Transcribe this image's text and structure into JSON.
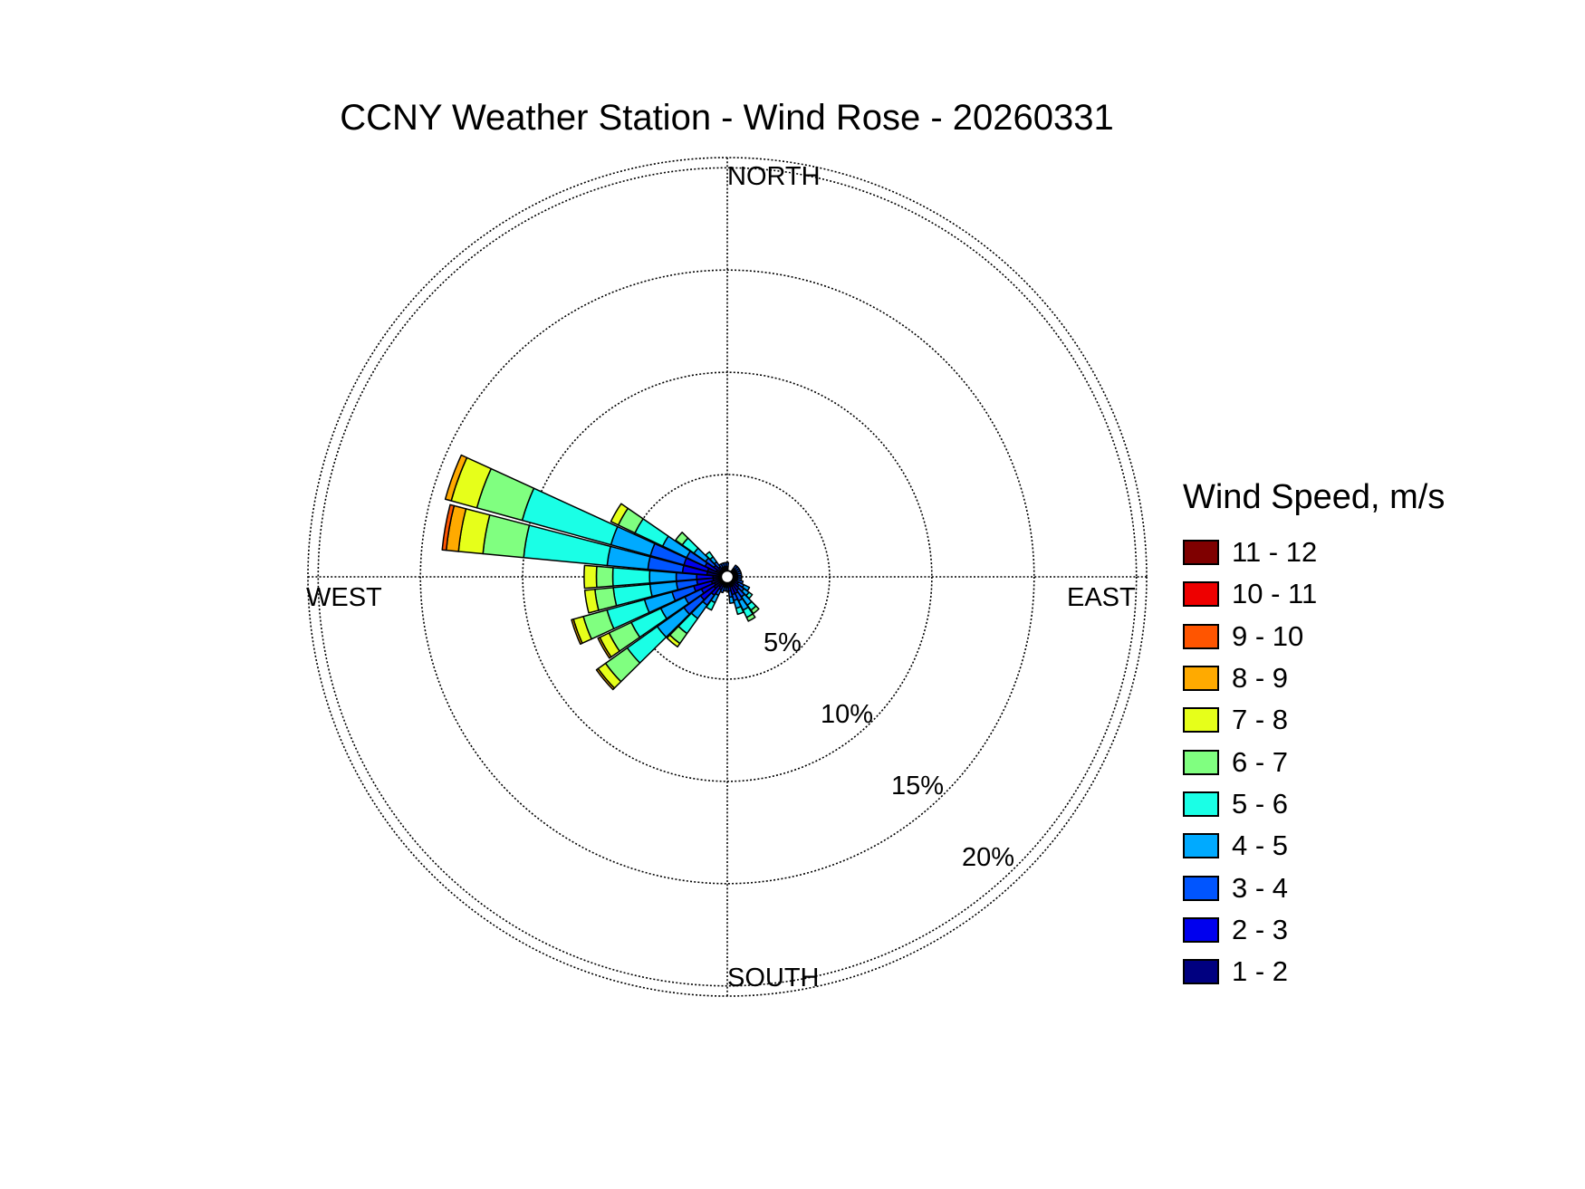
{
  "chart_data": {
    "type": "windrose",
    "title": "CCNY Weather Station - Wind Rose - 20260331",
    "directions": {
      "north": "NORTH",
      "east": "EAST",
      "south": "SOUTH",
      "west": "WEST"
    },
    "ring_labels": [
      "5%",
      "10%",
      "15%",
      "20%"
    ],
    "rings": [
      5,
      10,
      15,
      20
    ],
    "rmax": 20.5,
    "legend": {
      "title": "Wind Speed, m/s",
      "bins": [
        {
          "label": "11 - 12",
          "color": "#7f0000"
        },
        {
          "label": "10 - 11",
          "color": "#ee0000"
        },
        {
          "label": "9 - 10",
          "color": "#ff5500"
        },
        {
          "label": "8 - 9",
          "color": "#ffaa00"
        },
        {
          "label": "7 - 8",
          "color": "#e6ff1a"
        },
        {
          "label": "6 - 7",
          "color": "#80ff80"
        },
        {
          "label": "5 - 6",
          "color": "#1affe6"
        },
        {
          "label": "4 - 5",
          "color": "#00aaff"
        },
        {
          "label": "3 - 4",
          "color": "#0055ff"
        },
        {
          "label": "2 - 3",
          "color": "#0000ee"
        },
        {
          "label": "1 - 2",
          "color": "#000080"
        }
      ]
    },
    "stack_colors": [
      "#000080",
      "#0000ee",
      "#0055ff",
      "#00aaff",
      "#1affe6",
      "#80ff80",
      "#e6ff1a",
      "#ffaa00",
      "#ff5500",
      "#ee0000",
      "#7f0000"
    ],
    "series": [
      {
        "direction": 40,
        "cumulative": [
          0.3,
          0.5,
          0.7
        ]
      },
      {
        "direction": 50,
        "cumulative": [
          0.3,
          0.5,
          0.7
        ]
      },
      {
        "direction": 60,
        "cumulative": [
          0.3,
          0.5,
          0.7
        ]
      },
      {
        "direction": 70,
        "cumulative": [
          0.3,
          0.5,
          0.7
        ]
      },
      {
        "direction": 80,
        "cumulative": [
          0.3,
          0.5,
          0.7
        ]
      },
      {
        "direction": 90,
        "cumulative": [
          0.3,
          0.5,
          0.7
        ]
      },
      {
        "direction": 100,
        "cumulative": [
          0.3,
          0.5,
          0.7
        ]
      },
      {
        "direction": 110,
        "cumulative": [
          0.3,
          0.5,
          0.8
        ]
      },
      {
        "direction": 120,
        "cumulative": [
          0.3,
          0.6,
          0.9,
          1.2
        ]
      },
      {
        "direction": 130,
        "cumulative": [
          0.4,
          0.7,
          1.0,
          1.3,
          1.5
        ]
      },
      {
        "direction": 140,
        "cumulative": [
          0.4,
          0.8,
          1.2,
          1.7,
          2.0,
          2.2
        ]
      },
      {
        "direction": 150,
        "cumulative": [
          0.5,
          0.9,
          1.3,
          1.8,
          2.2,
          2.4
        ]
      },
      {
        "direction": 160,
        "cumulative": [
          0.5,
          0.9,
          1.2,
          1.6,
          1.9
        ]
      },
      {
        "direction": 170,
        "cumulative": [
          0.4,
          0.7,
          1.0,
          1.3
        ]
      },
      {
        "direction": 180,
        "cumulative": [
          0.3,
          0.5,
          0.7
        ]
      },
      {
        "direction": 190,
        "cumulative": [
          0.3,
          0.5,
          0.7
        ]
      },
      {
        "direction": 200,
        "cumulative": [
          0.3,
          0.5,
          0.8
        ]
      },
      {
        "direction": 210,
        "cumulative": [
          0.4,
          0.7,
          1.0,
          1.4,
          1.8
        ]
      },
      {
        "direction": 220,
        "cumulative": [
          0.6,
          1.1,
          1.7,
          2.5,
          3.4,
          4.0,
          4.2
        ]
      },
      {
        "direction": 230,
        "cumulative": [
          0.8,
          1.6,
          2.6,
          4.2,
          6.0,
          7.3,
          7.75,
          7.85
        ]
      },
      {
        "direction": 240,
        "cumulative": [
          0.7,
          1.4,
          2.3,
          3.6,
          5.2,
          6.4,
          6.9,
          7.0
        ]
      },
      {
        "direction": 250,
        "cumulative": [
          0.8,
          1.7,
          2.8,
          4.2,
          6.1,
          7.3,
          7.8,
          7.9
        ]
      },
      {
        "direction": 260,
        "cumulative": [
          0.7,
          1.5,
          2.5,
          3.8,
          5.6,
          6.5,
          7.0
        ]
      },
      {
        "direction": 270,
        "cumulative": [
          0.7,
          1.5,
          2.5,
          3.8,
          5.6,
          6.4,
          7.0
        ]
      },
      {
        "direction": 280,
        "cumulative": [
          1.0,
          2.2,
          3.9,
          5.9,
          10.0,
          12.0,
          13.2,
          13.8,
          14.0
        ]
      },
      {
        "direction": 290,
        "cumulative": [
          1.0,
          2.2,
          3.9,
          5.9,
          10.4,
          12.7,
          14.0,
          14.3
        ]
      },
      {
        "direction": 300,
        "cumulative": [
          0.6,
          1.2,
          2.2,
          3.5,
          5.0,
          5.9,
          6.3
        ]
      },
      {
        "direction": 310,
        "cumulative": [
          0.4,
          0.8,
          1.3,
          2.0,
          2.7,
          3.1
        ]
      },
      {
        "direction": 320,
        "cumulative": [
          0.3,
          0.6,
          0.9,
          1.2,
          1.5
        ]
      },
      {
        "direction": 330,
        "cumulative": [
          0.3,
          0.5,
          0.7
        ]
      },
      {
        "direction": 340,
        "cumulative": [
          0.3,
          0.5,
          0.7
        ]
      },
      {
        "direction": 350,
        "cumulative": [
          0.3,
          0.5,
          0.7
        ]
      },
      {
        "direction": 360,
        "cumulative": [
          0.3,
          0.5,
          0.7
        ]
      }
    ]
  }
}
